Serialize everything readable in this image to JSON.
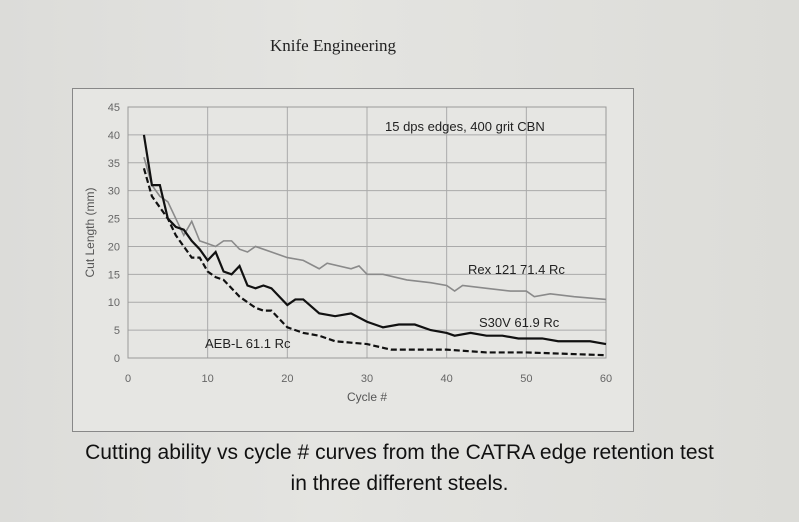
{
  "header": "Knife Engineering",
  "caption_line1": "Cutting ability vs cycle # curves from the CATRA edge retention test",
  "caption_line2": "in three different steels.",
  "chart_data": {
    "type": "line",
    "title": "",
    "annotation": "15 dps edges, 400 grit CBN",
    "xlabel": "Cycle #",
    "ylabel": "Cut Length (mm)",
    "xlim": [
      0,
      60
    ],
    "ylim": [
      0,
      45
    ],
    "xticks": [
      0,
      10,
      20,
      30,
      40,
      50,
      60
    ],
    "yticks": [
      0,
      5,
      10,
      15,
      20,
      25,
      30,
      35,
      40,
      45
    ],
    "grid": true,
    "series": [
      {
        "name": "Rex 121 71.4 Rc",
        "color": "#8a8a8a",
        "dash": "solid",
        "x": [
          2,
          3,
          4,
          5,
          6,
          7,
          8,
          9,
          10,
          11,
          12,
          13,
          14,
          15,
          16,
          18,
          20,
          22,
          24,
          25,
          28,
          29,
          30,
          32,
          35,
          38,
          40,
          41,
          42,
          45,
          48,
          50,
          51,
          53,
          56,
          60
        ],
        "y": [
          36,
          31,
          29,
          28,
          25,
          22,
          24.5,
          21,
          20.5,
          20,
          21,
          21,
          19.5,
          19,
          20,
          19,
          18,
          17.5,
          16,
          17,
          16,
          16.5,
          15,
          15,
          14,
          13.5,
          13,
          12,
          13,
          12.5,
          12,
          12,
          11,
          11.5,
          11,
          10.5
        ]
      },
      {
        "name": "S30V 61.9 Rc",
        "color": "#111111",
        "dash": "solid",
        "x": [
          2,
          3,
          4,
          5,
          6,
          7,
          8,
          9,
          10,
          11,
          12,
          13,
          14,
          15,
          16,
          17,
          18,
          20,
          21,
          22,
          24,
          26,
          28,
          30,
          32,
          34,
          36,
          38,
          40,
          41,
          43,
          45,
          47,
          49,
          52,
          54,
          58,
          60
        ],
        "y": [
          40,
          31,
          31,
          25,
          23.5,
          23,
          21,
          19.5,
          17.5,
          19,
          15.5,
          15,
          16.5,
          13,
          12.5,
          13,
          12.5,
          9.5,
          10.5,
          10.5,
          8,
          7.5,
          8,
          6.5,
          5.5,
          6,
          6,
          5,
          4.5,
          4,
          4.5,
          4,
          4,
          3.5,
          3.5,
          3,
          3,
          2.5
        ]
      },
      {
        "name": "AEB-L 61.1 Rc",
        "color": "#111111",
        "dash": "dashed",
        "x": [
          2,
          3,
          4,
          5,
          6,
          7,
          8,
          9,
          10,
          11,
          12,
          14,
          16,
          17,
          18,
          20,
          22,
          24,
          26,
          30,
          33,
          40,
          45,
          50,
          60
        ],
        "y": [
          34,
          29,
          27,
          25,
          22,
          20,
          18,
          18,
          15.5,
          14.5,
          14,
          11,
          9,
          8.5,
          8.5,
          5.5,
          4.5,
          4,
          3,
          2.5,
          1.5,
          1.5,
          1,
          1,
          0.5
        ]
      }
    ]
  }
}
